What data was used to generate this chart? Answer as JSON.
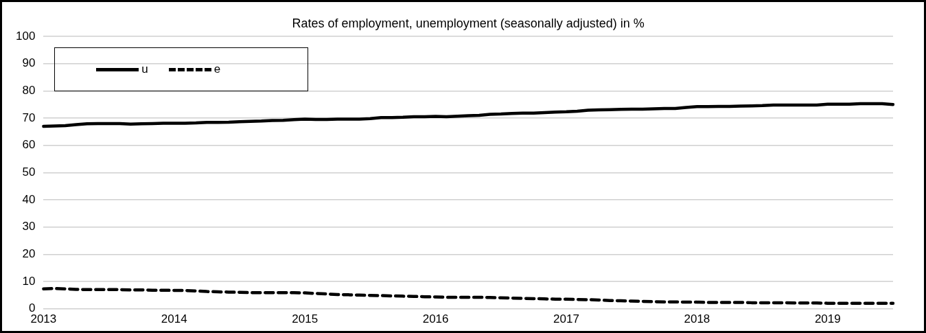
{
  "chart_data": {
    "type": "line",
    "title": "Rates of employment, unemployment (seasonally adjusted) in %",
    "categories": [
      "2013",
      null,
      null,
      null,
      null,
      null,
      null,
      null,
      null,
      null,
      null,
      null,
      "2014",
      null,
      null,
      null,
      null,
      null,
      null,
      null,
      null,
      null,
      null,
      null,
      "2015",
      null,
      null,
      null,
      null,
      null,
      null,
      null,
      null,
      null,
      null,
      null,
      "2016",
      null,
      null,
      null,
      null,
      null,
      null,
      null,
      null,
      null,
      null,
      null,
      "2017",
      null,
      null,
      null,
      null,
      null,
      null,
      null,
      null,
      null,
      null,
      null,
      "2018",
      null,
      null,
      null,
      null,
      null,
      null,
      null,
      null,
      null,
      null,
      null,
      "2019",
      null,
      null,
      null,
      null,
      null,
      null
    ],
    "series": [
      {
        "name": "u",
        "color": "#000000",
        "line_style": "solid",
        "values": [
          67.0,
          67.1,
          67.2,
          67.6,
          67.9,
          68.0,
          68.0,
          68.0,
          67.8,
          67.9,
          68.0,
          68.1,
          68.1,
          68.1,
          68.2,
          68.4,
          68.4,
          68.5,
          68.7,
          68.8,
          68.9,
          69.1,
          69.2,
          69.4,
          69.6,
          69.5,
          69.5,
          69.6,
          69.6,
          69.6,
          69.8,
          70.2,
          70.2,
          70.3,
          70.5,
          70.5,
          70.6,
          70.5,
          70.7,
          70.9,
          71.0,
          71.4,
          71.5,
          71.7,
          71.8,
          71.8,
          72.0,
          72.2,
          72.3,
          72.5,
          72.9,
          73.0,
          73.1,
          73.2,
          73.3,
          73.3,
          73.4,
          73.5,
          73.5,
          73.9,
          74.2,
          74.2,
          74.3,
          74.3,
          74.4,
          74.5,
          74.6,
          74.8,
          74.8,
          74.8,
          74.8,
          74.8,
          75.1,
          75.1,
          75.1,
          75.3,
          75.3,
          75.3,
          75.0
        ]
      },
      {
        "name": "e",
        "color": "#000000",
        "line_style": "dashed",
        "values": [
          7.3,
          7.4,
          7.3,
          7.1,
          7.0,
          7.0,
          7.0,
          7.0,
          6.9,
          6.9,
          6.8,
          6.8,
          6.7,
          6.7,
          6.5,
          6.3,
          6.2,
          6.1,
          6.0,
          5.9,
          5.9,
          5.9,
          5.9,
          5.9,
          5.8,
          5.6,
          5.4,
          5.2,
          5.1,
          5.0,
          4.9,
          4.8,
          4.7,
          4.6,
          4.5,
          4.4,
          4.3,
          4.2,
          4.2,
          4.2,
          4.2,
          4.1,
          4.0,
          3.9,
          3.8,
          3.7,
          3.6,
          3.5,
          3.5,
          3.4,
          3.3,
          3.2,
          3.0,
          2.9,
          2.8,
          2.7,
          2.6,
          2.5,
          2.5,
          2.4,
          2.4,
          2.3,
          2.3,
          2.3,
          2.3,
          2.2,
          2.2,
          2.2,
          2.2,
          2.1,
          2.1,
          2.1,
          2.0,
          2.0,
          2.0,
          2.0,
          2.0,
          2.0,
          2.0
        ]
      }
    ],
    "ylim": [
      0,
      100
    ],
    "yticks": [
      0,
      10,
      20,
      30,
      40,
      50,
      60,
      70,
      80,
      90,
      100
    ],
    "grid": "y",
    "legend": "top left",
    "marker": "none"
  }
}
